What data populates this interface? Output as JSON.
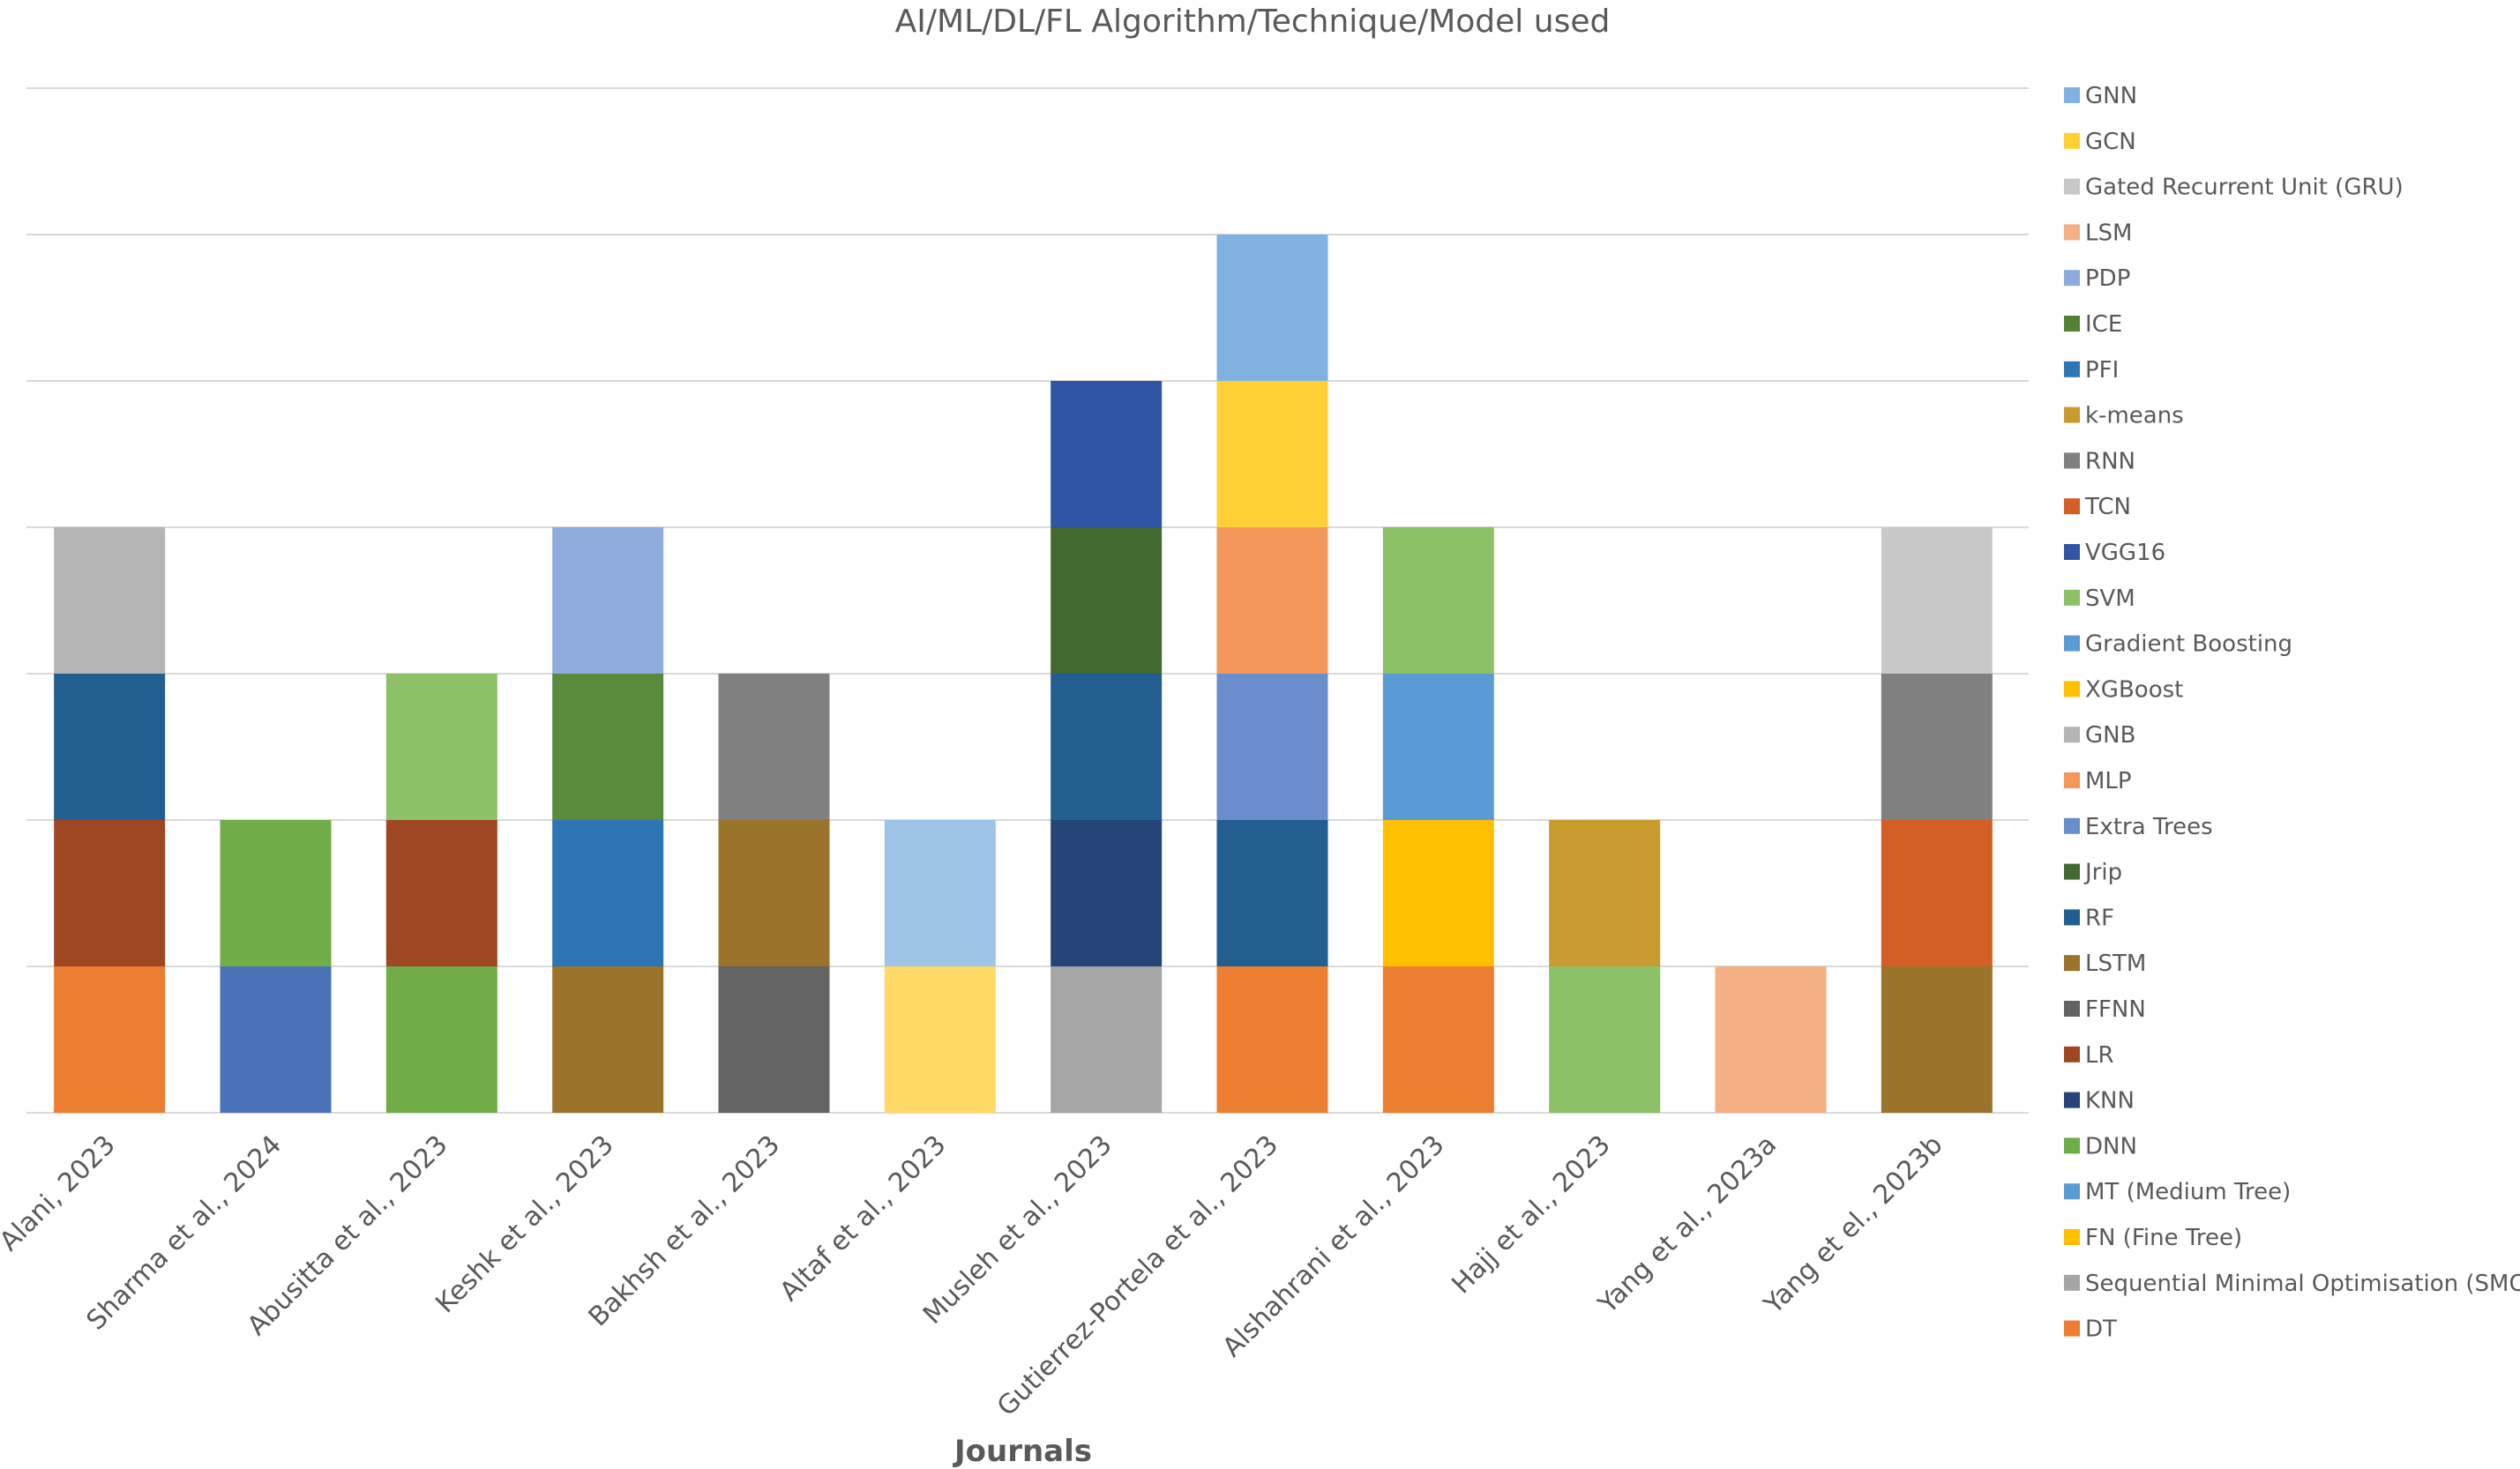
{
  "chart_data": {
    "type": "bar",
    "stacked": true,
    "title": "AI/ML/DL/FL Algorithm/Technique/Model used",
    "xlabel": "Journals",
    "ylabel": "",
    "ylim": [
      0,
      7
    ],
    "grid": true,
    "legend_position": "right",
    "categories": [
      "Alani, 2023",
      "Sharma et al., 2024",
      "Abusitta et al., 2023",
      "Keshk et al., 2023",
      "Bakhsh et al., 2023",
      "Altaf et al., 2023",
      "Musleh et al., 2023",
      "Gutierrez-Portela et al., 2023",
      "Alshahrani et al., 2023",
      "Hajj et al., 2023",
      "Yang et al., 2023a",
      "Yang et el., 2023b"
    ],
    "legend": [
      {
        "name": "GNN",
        "color": "#7fb2e0"
      },
      {
        "name": "GCN",
        "color": "#ffd033"
      },
      {
        "name": "Gated Recurrent Unit (GRU)",
        "color": "#c8c8c8"
      },
      {
        "name": "LSM",
        "color": "#f2b084"
      },
      {
        "name": "PDP",
        "color": "#8faadc"
      },
      {
        "name": "ICE",
        "color": "#548235"
      },
      {
        "name": "PFI",
        "color": "#2e75b6"
      },
      {
        "name": "k-means",
        "color": "#c99a2e"
      },
      {
        "name": "RNN",
        "color": "#808080"
      },
      {
        "name": "TCN",
        "color": "#d35f26"
      },
      {
        "name": "VGG16",
        "color": "#2f55a4"
      },
      {
        "name": "SVM",
        "color": "#8cc168"
      },
      {
        "name": "Gradient Boosting",
        "color": "#5b9bd5"
      },
      {
        "name": "XGBoost",
        "color": "#ffc000"
      },
      {
        "name": "GNB",
        "color": "#b4b4b4"
      },
      {
        "name": "MLP",
        "color": "#f4975a"
      },
      {
        "name": "Extra Trees",
        "color": "#6a8dcb"
      },
      {
        "name": "Jrip",
        "color": "#436a31"
      },
      {
        "name": "RF",
        "color": "#225e90"
      },
      {
        "name": "LSTM",
        "color": "#99742a"
      },
      {
        "name": "FFNN",
        "color": "#636363"
      },
      {
        "name": "LR",
        "color": "#9e4722"
      },
      {
        "name": "KNN",
        "color": "#254478"
      },
      {
        "name": "DNN",
        "color": "#70ad47"
      },
      {
        "name": "MT (Medium Tree)",
        "color": "#5b9bd5"
      },
      {
        "name": "FN (Fine Tree)",
        "color": "#ffc000"
      },
      {
        "name": "Sequential Minimal Optimisation (SMO)",
        "color": "#a5a5a5"
      },
      {
        "name": "DT",
        "color": "#ed7d31"
      }
    ],
    "stacks": [
      [
        {
          "name": "DT",
          "value": 1,
          "color": "#ed7d31"
        },
        {
          "name": "LR",
          "value": 1,
          "color": "#9e4722"
        },
        {
          "name": "RF",
          "value": 1,
          "color": "#225e90"
        },
        {
          "name": "GNB",
          "value": 1,
          "color": "#b4b4b4"
        }
      ],
      [
        {
          "name": "Extra Trees",
          "value": 1,
          "color": "#4a72b8"
        },
        {
          "name": "DNN",
          "value": 1,
          "color": "#70ad47"
        }
      ],
      [
        {
          "name": "DNN",
          "value": 1,
          "color": "#70ad47"
        },
        {
          "name": "LR",
          "value": 1,
          "color": "#9e4722"
        },
        {
          "name": "SVM",
          "value": 1,
          "color": "#8cc168"
        }
      ],
      [
        {
          "name": "LSTM",
          "value": 1,
          "color": "#99742a"
        },
        {
          "name": "PFI",
          "value": 1,
          "color": "#2e75b6"
        },
        {
          "name": "ICE",
          "value": 1,
          "color": "#5a8a3c"
        },
        {
          "name": "PDP",
          "value": 1,
          "color": "#8faadc"
        }
      ],
      [
        {
          "name": "FFNN",
          "value": 1,
          "color": "#636363"
        },
        {
          "name": "LSTM",
          "value": 1,
          "color": "#99742a"
        },
        {
          "name": "RNN",
          "value": 1,
          "color": "#808080"
        }
      ],
      [
        {
          "name": "GCN",
          "value": 1,
          "color": "#ffd966"
        },
        {
          "name": "GNN",
          "value": 1,
          "color": "#9dc3e6"
        }
      ],
      [
        {
          "name": "Sequential Minimal Optimisation (SMO)",
          "value": 1,
          "color": "#a5a5a5"
        },
        {
          "name": "KNN",
          "value": 1,
          "color": "#254478"
        },
        {
          "name": "RF",
          "value": 1,
          "color": "#225e90"
        },
        {
          "name": "Jrip",
          "value": 1,
          "color": "#436a31"
        },
        {
          "name": "VGG16",
          "value": 1,
          "color": "#2f55a4"
        }
      ],
      [
        {
          "name": "DT",
          "value": 1,
          "color": "#ed7d31"
        },
        {
          "name": "RF",
          "value": 1,
          "color": "#225e90"
        },
        {
          "name": "Extra Trees",
          "value": 1,
          "color": "#6a8dcb"
        },
        {
          "name": "MLP",
          "value": 1,
          "color": "#f4975a"
        },
        {
          "name": "XGBoost",
          "value": 1,
          "color": "#ffd033"
        },
        {
          "name": "Gradient Boosting",
          "value": 1,
          "color": "#7fb2e0"
        }
      ],
      [
        {
          "name": "DT",
          "value": 1,
          "color": "#ed7d31"
        },
        {
          "name": "FN (Fine Tree)",
          "value": 1,
          "color": "#ffc000"
        },
        {
          "name": "MT (Medium Tree)",
          "value": 1,
          "color": "#5b9bd5"
        },
        {
          "name": "SVM",
          "value": 1,
          "color": "#8cc168"
        }
      ],
      [
        {
          "name": "SVM",
          "value": 1,
          "color": "#8cc168"
        },
        {
          "name": "k-means",
          "value": 1,
          "color": "#c99a2e"
        }
      ],
      [
        {
          "name": "LSM",
          "value": 1,
          "color": "#f2b084"
        }
      ],
      [
        {
          "name": "LSTM",
          "value": 1,
          "color": "#99742a"
        },
        {
          "name": "TCN",
          "value": 1,
          "color": "#d35f26"
        },
        {
          "name": "RNN",
          "value": 1,
          "color": "#808080"
        },
        {
          "name": "Gated Recurrent Unit (GRU)",
          "value": 1,
          "color": "#c8c8c8"
        }
      ]
    ]
  }
}
